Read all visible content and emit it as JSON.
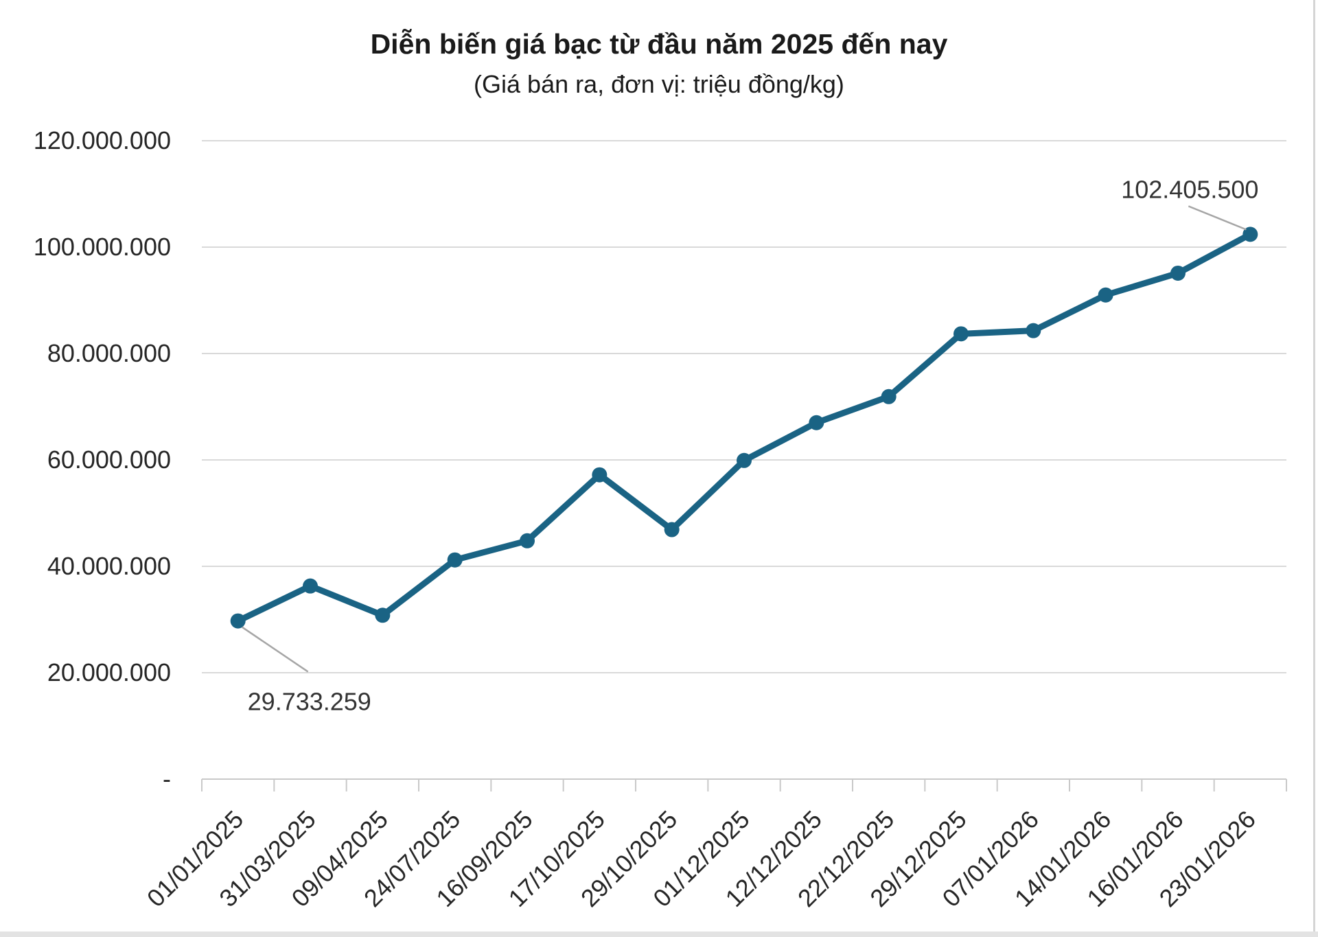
{
  "page": {
    "title": "Diễn biến giá bạc từ đầu năm 2025 đến nay",
    "subtitle": "(Giá bán ra, đơn vị: triệu đồng/kg)"
  },
  "colors": {
    "line": "#1A6384",
    "marker": "#1A6384",
    "gridline": "#D9D9D9",
    "axis": "#C9C9C9",
    "tick": "#C9C9C9",
    "title_text": "#1A1A1A",
    "axis_text": "#262626",
    "annotation_text": "#333333",
    "leader_line": "#A6A6A6",
    "page_border": "#D5D5D5",
    "footer_bar": "#E3E3E3",
    "background": "#FFFFFF"
  },
  "chart_data": {
    "type": "line",
    "title": "Diễn biến giá bạc từ đầu năm 2025 đến nay",
    "subtitle": "(Giá bán ra, đơn vị: triệu đồng/kg)",
    "categories": [
      "01/01/2025",
      "31/03/2025",
      "09/04/2025",
      "24/07/2025",
      "16/09/2025",
      "17/10/2025",
      "29/10/2025",
      "01/12/2025",
      "12/12/2025",
      "22/12/2025",
      "29/12/2025",
      "07/01/2026",
      "14/01/2026",
      "16/01/2026",
      "23/01/2026"
    ],
    "series": [
      {
        "name": "Giá bán ra",
        "values": [
          29733259,
          36300000,
          30800000,
          41200000,
          44800000,
          57200000,
          46900000,
          59900000,
          67000000,
          71900000,
          83700000,
          84300000,
          91000000,
          95100000,
          102405500
        ]
      }
    ],
    "y_axis": {
      "ylim": [
        0,
        120000000
      ],
      "ticks": [
        {
          "label": "120.000.000",
          "value": 120000000
        },
        {
          "label": "100.000.000",
          "value": 100000000
        },
        {
          "label": "80.000.000",
          "value": 80000000
        },
        {
          "label": "60.000.000",
          "value": 60000000
        },
        {
          "label": "40.000.000",
          "value": 40000000
        },
        {
          "label": "20.000.000",
          "value": 20000000
        },
        {
          "label": "-",
          "value": 0
        }
      ]
    },
    "grid": true,
    "legend": "none",
    "annotations": [
      {
        "text": "29.733.259",
        "point_index": 0,
        "position": "below"
      },
      {
        "text": "102.405.500",
        "point_index": 14,
        "position": "above"
      }
    ]
  }
}
